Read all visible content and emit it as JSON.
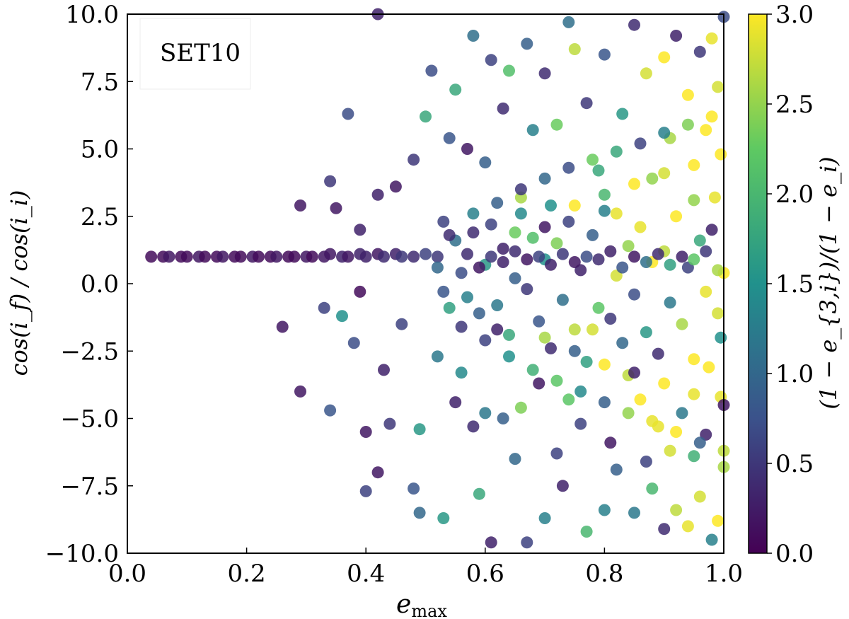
{
  "chart_data": {
    "type": "scatter",
    "title": "",
    "annotation": "SET10",
    "xlabel": {
      "base": "e",
      "sub": "max"
    },
    "ylabel": "cos(i_f) / cos(i_i)",
    "colorbar_label": "(1 − e_{3,i})/(1 − e_i)",
    "xlim": [
      0.0,
      1.0
    ],
    "ylim": [
      -10.0,
      10.0
    ],
    "clim": [
      0.0,
      3.0
    ],
    "xticks": [
      "0.0",
      "0.2",
      "0.4",
      "0.6",
      "0.8",
      "1.0"
    ],
    "yticks": [
      "10.0",
      "7.5",
      "5.0",
      "2.5",
      "0.0",
      "−2.5",
      "−5.0",
      "−7.5",
      "−10.0"
    ],
    "cticks": [
      "3.0",
      "2.5",
      "2.0",
      "1.5",
      "1.0",
      "0.5",
      "0.0"
    ],
    "colormap": [
      "#440154",
      "#3b528b",
      "#21918c",
      "#5ec962",
      "#fde725"
    ],
    "grid": false,
    "points": [
      [
        0.04,
        1.0,
        0.1
      ],
      [
        0.06,
        1.0,
        0.1
      ],
      [
        0.07,
        1.0,
        0.2
      ],
      [
        0.09,
        1.0,
        0.1
      ],
      [
        0.1,
        1.0,
        0.1
      ],
      [
        0.12,
        1.0,
        0.2
      ],
      [
        0.13,
        1.0,
        0.1
      ],
      [
        0.15,
        1.0,
        0.1
      ],
      [
        0.16,
        1.0,
        0.2
      ],
      [
        0.18,
        1.0,
        0.1
      ],
      [
        0.19,
        1.0,
        0.1
      ],
      [
        0.21,
        1.0,
        0.2
      ],
      [
        0.22,
        1.0,
        0.1
      ],
      [
        0.24,
        1.0,
        0.1
      ],
      [
        0.25,
        1.0,
        0.2
      ],
      [
        0.27,
        1.0,
        0.1
      ],
      [
        0.28,
        1.0,
        0.1
      ],
      [
        0.3,
        1.0,
        0.2
      ],
      [
        0.31,
        1.0,
        0.1
      ],
      [
        0.33,
        1.0,
        0.2
      ],
      [
        0.34,
        1.1,
        0.2
      ],
      [
        0.36,
        1.0,
        0.3
      ],
      [
        0.37,
        1.0,
        0.2
      ],
      [
        0.39,
        1.1,
        0.3
      ],
      [
        0.4,
        1.0,
        0.3
      ],
      [
        0.42,
        1.1,
        0.2
      ],
      [
        0.43,
        1.0,
        0.4
      ],
      [
        0.45,
        1.1,
        0.3
      ],
      [
        0.46,
        1.0,
        0.5
      ],
      [
        0.48,
        1.0,
        0.4
      ],
      [
        0.5,
        1.1,
        0.6
      ],
      [
        0.52,
        1.0,
        0.5
      ],
      [
        0.29,
        2.9,
        0.2
      ],
      [
        0.34,
        3.8,
        0.5
      ],
      [
        0.35,
        2.8,
        0.2
      ],
      [
        0.37,
        6.3,
        0.7
      ],
      [
        0.39,
        2.0,
        0.3
      ],
      [
        0.26,
        -1.6,
        0.2
      ],
      [
        0.29,
        -4.0,
        0.2
      ],
      [
        0.33,
        -0.9,
        0.6
      ],
      [
        0.34,
        -4.7,
        0.8
      ],
      [
        0.36,
        -1.2,
        1.5
      ],
      [
        0.38,
        -2.2,
        0.7
      ],
      [
        0.39,
        -0.3,
        0.1
      ],
      [
        0.4,
        -5.5,
        0.2
      ],
      [
        0.4,
        -7.7,
        0.6
      ],
      [
        0.42,
        -7.0,
        0.2
      ],
      [
        0.42,
        3.3,
        0.3
      ],
      [
        0.43,
        -3.2,
        0.3
      ],
      [
        0.44,
        -5.2,
        0.5
      ],
      [
        0.45,
        3.6,
        0.2
      ],
      [
        0.46,
        -1.5,
        0.6
      ],
      [
        0.42,
        10.0,
        0.3
      ],
      [
        0.48,
        -7.6,
        0.8
      ],
      [
        0.48,
        4.6,
        0.5
      ],
      [
        0.49,
        -5.4,
        1.6
      ],
      [
        0.49,
        -8.5,
        1.0
      ],
      [
        0.5,
        6.2,
        1.8
      ],
      [
        0.51,
        7.9,
        0.7
      ],
      [
        0.52,
        -2.7,
        1.2
      ],
      [
        0.53,
        -8.7,
        1.6
      ],
      [
        0.53,
        2.3,
        0.6
      ],
      [
        0.54,
        5.4,
        0.8
      ],
      [
        0.55,
        7.2,
        1.8
      ],
      [
        0.55,
        -4.4,
        0.3
      ],
      [
        0.56,
        -3.3,
        1.4
      ],
      [
        0.57,
        5.0,
        0.2
      ],
      [
        0.58,
        -5.3,
        0.4
      ],
      [
        0.58,
        9.2,
        1.1
      ],
      [
        0.59,
        -7.8,
        1.8
      ],
      [
        0.6,
        -4.8,
        1.2
      ],
      [
        0.6,
        4.5,
        0.9
      ],
      [
        0.61,
        -9.6,
        0.3
      ],
      [
        0.61,
        8.3,
        0.6
      ],
      [
        0.62,
        -1.7,
        0.3
      ],
      [
        0.63,
        6.5,
        0.4
      ],
      [
        0.63,
        -5.0,
        0.9
      ],
      [
        0.64,
        7.9,
        2.1
      ],
      [
        0.65,
        -6.5,
        1.0
      ],
      [
        0.66,
        3.2,
        2.6
      ],
      [
        0.66,
        -4.6,
        2.4
      ],
      [
        0.67,
        8.9,
        0.9
      ],
      [
        0.67,
        -9.6,
        0.6
      ],
      [
        0.68,
        5.7,
        1.3
      ],
      [
        0.69,
        -3.7,
        0.2
      ],
      [
        0.7,
        7.8,
        0.4
      ],
      [
        0.7,
        -8.7,
        1.3
      ],
      [
        0.71,
        2.9,
        1.5
      ],
      [
        0.72,
        -6.3,
        0.6
      ],
      [
        0.72,
        5.9,
        2.3
      ],
      [
        0.73,
        -7.5,
        0.3
      ],
      [
        0.74,
        9.7,
        1.1
      ],
      [
        0.74,
        -4.3,
        2.2
      ],
      [
        0.75,
        8.7,
        2.7
      ],
      [
        0.76,
        -5.2,
        0.6
      ],
      [
        0.77,
        6.7,
        0.5
      ],
      [
        0.77,
        -9.2,
        2.0
      ],
      [
        0.78,
        -1.7,
        2.8
      ],
      [
        0.79,
        4.2,
        1.8
      ],
      [
        0.8,
        -8.4,
        1.3
      ],
      [
        0.8,
        8.5,
        0.8
      ],
      [
        0.81,
        -5.9,
        0.2
      ],
      [
        0.82,
        2.6,
        2.9
      ],
      [
        0.82,
        -6.9,
        0.9
      ],
      [
        0.83,
        6.3,
        1.6
      ],
      [
        0.84,
        -3.4,
        2.7
      ],
      [
        0.85,
        9.6,
        0.4
      ],
      [
        0.85,
        -8.5,
        1.2
      ],
      [
        0.86,
        -4.3,
        3.0
      ],
      [
        0.87,
        7.8,
        2.8
      ],
      [
        0.87,
        -6.6,
        0.6
      ],
      [
        0.88,
        3.9,
        2.5
      ],
      [
        0.88,
        -7.6,
        2.0
      ],
      [
        0.89,
        -5.3,
        2.9
      ],
      [
        0.9,
        8.4,
        3.0
      ],
      [
        0.9,
        -9.1,
        0.4
      ],
      [
        0.91,
        5.4,
        2.6
      ],
      [
        0.91,
        -6.2,
        2.8
      ],
      [
        0.92,
        9.2,
        0.3
      ],
      [
        0.92,
        -8.4,
        2.7
      ],
      [
        0.93,
        -4.8,
        1.2
      ],
      [
        0.94,
        7.0,
        3.0
      ],
      [
        0.94,
        -9.0,
        2.9
      ],
      [
        0.95,
        3.1,
        2.5
      ],
      [
        0.95,
        -6.4,
        1.9
      ],
      [
        0.96,
        8.6,
        0.5
      ],
      [
        0.96,
        -7.9,
        2.8
      ],
      [
        0.97,
        5.7,
        3.0
      ],
      [
        0.97,
        -5.6,
        0.3
      ],
      [
        0.98,
        9.1,
        2.9
      ],
      [
        0.98,
        -9.5,
        1.3
      ],
      [
        0.99,
        7.3,
        2.8
      ],
      [
        0.99,
        -8.8,
        3.0
      ],
      [
        1.0,
        9.9,
        0.7
      ],
      [
        1.0,
        -6.8,
        2.6
      ],
      [
        0.995,
        -4.2,
        2.9
      ],
      [
        0.995,
        4.8,
        3.0
      ],
      [
        0.55,
        1.6,
        1.1
      ],
      [
        0.56,
        0.4,
        0.7
      ],
      [
        0.57,
        -0.5,
        1.3
      ],
      [
        0.58,
        1.9,
        0.4
      ],
      [
        0.59,
        -1.1,
        0.9
      ],
      [
        0.6,
        0.7,
        1.6
      ],
      [
        0.61,
        2.2,
        0.6
      ],
      [
        0.62,
        -0.8,
        1.2
      ],
      [
        0.63,
        1.3,
        0.3
      ],
      [
        0.64,
        -1.9,
        1.8
      ],
      [
        0.65,
        0.2,
        0.9
      ],
      [
        0.66,
        2.6,
        1.4
      ],
      [
        0.67,
        -0.2,
        0.5
      ],
      [
        0.68,
        1.7,
        2.1
      ],
      [
        0.69,
        -1.4,
        0.8
      ],
      [
        0.7,
        0.9,
        1.5
      ],
      [
        0.71,
        -2.4,
        0.4
      ],
      [
        0.72,
        1.5,
        2.4
      ],
      [
        0.73,
        -0.6,
        1.1
      ],
      [
        0.74,
        2.3,
        0.6
      ],
      [
        0.75,
        -1.7,
        2.7
      ],
      [
        0.76,
        0.5,
        0.3
      ],
      [
        0.77,
        -2.9,
        1.7
      ],
      [
        0.78,
        1.8,
        0.9
      ],
      [
        0.79,
        -0.9,
        2.2
      ],
      [
        0.8,
        2.7,
        1.3
      ],
      [
        0.81,
        -1.3,
        0.5
      ],
      [
        0.82,
        0.3,
        2.8
      ],
      [
        0.83,
        -2.2,
        1.0
      ],
      [
        0.84,
        1.4,
        2.5
      ],
      [
        0.85,
        -0.4,
        0.7
      ],
      [
        0.86,
        2.1,
        2.9
      ],
      [
        0.87,
        -1.8,
        1.6
      ],
      [
        0.88,
        0.8,
        3.0
      ],
      [
        0.89,
        -2.6,
        0.4
      ],
      [
        0.9,
        1.2,
        2.7
      ],
      [
        0.91,
        -0.7,
        1.2
      ],
      [
        0.92,
        2.5,
        3.0
      ],
      [
        0.93,
        -1.5,
        2.6
      ],
      [
        0.94,
        0.6,
        0.6
      ],
      [
        0.95,
        -2.8,
        3.0
      ],
      [
        0.96,
        1.6,
        1.8
      ],
      [
        0.97,
        -0.3,
        2.9
      ],
      [
        0.98,
        2.0,
        0.3
      ],
      [
        0.99,
        -1.1,
        2.8
      ],
      [
        1.0,
        0.4,
        3.0
      ],
      [
        0.995,
        -2.0,
        1.5
      ],
      [
        0.985,
        3.2,
        2.9
      ],
      [
        0.975,
        -3.1,
        3.0
      ],
      [
        0.57,
        1.1,
        0.4
      ],
      [
        0.59,
        0.6,
        0.2
      ],
      [
        0.61,
        1.0,
        0.5
      ],
      [
        0.63,
        0.8,
        0.3
      ],
      [
        0.65,
        1.2,
        0.4
      ],
      [
        0.67,
        0.9,
        0.2
      ],
      [
        0.69,
        1.0,
        0.6
      ],
      [
        0.71,
        0.7,
        0.3
      ],
      [
        0.73,
        1.1,
        0.5
      ],
      [
        0.75,
        0.8,
        0.2
      ],
      [
        0.77,
        1.0,
        0.7
      ],
      [
        0.79,
        0.9,
        0.4
      ],
      [
        0.81,
        1.2,
        0.3
      ],
      [
        0.83,
        0.6,
        0.8
      ],
      [
        0.85,
        1.0,
        0.2
      ],
      [
        0.87,
        0.8,
        1.1
      ],
      [
        0.89,
        1.1,
        0.4
      ],
      [
        0.91,
        0.7,
        1.7
      ],
      [
        0.93,
        1.0,
        0.3
      ],
      [
        0.95,
        0.9,
        2.2
      ],
      [
        0.97,
        1.2,
        0.5
      ],
      [
        0.99,
        0.5,
        2.6
      ],
      [
        0.52,
        0.6,
        1.0
      ],
      [
        0.53,
        -0.3,
        0.8
      ],
      [
        0.54,
        1.8,
        0.4
      ],
      [
        0.54,
        -0.9,
        1.7
      ],
      [
        0.56,
        -1.6,
        0.5
      ],
      [
        0.58,
        2.6,
        1.3
      ],
      [
        0.6,
        -2.1,
        0.6
      ],
      [
        0.62,
        3.0,
        0.9
      ],
      [
        0.64,
        -2.7,
        1.5
      ],
      [
        0.66,
        3.5,
        0.5
      ],
      [
        0.68,
        -3.2,
        1.9
      ],
      [
        0.7,
        3.9,
        1.0
      ],
      [
        0.72,
        -3.6,
        2.2
      ],
      [
        0.74,
        4.3,
        0.7
      ],
      [
        0.76,
        -4.0,
        1.4
      ],
      [
        0.78,
        4.6,
        2.3
      ],
      [
        0.8,
        -4.4,
        0.9
      ],
      [
        0.82,
        4.9,
        1.8
      ],
      [
        0.84,
        -4.8,
        2.5
      ],
      [
        0.86,
        5.2,
        0.6
      ],
      [
        0.88,
        -5.1,
        2.9
      ],
      [
        0.9,
        5.6,
        1.3
      ],
      [
        0.92,
        -5.5,
        3.0
      ],
      [
        0.94,
        5.9,
        2.4
      ],
      [
        0.96,
        -5.9,
        0.9
      ],
      [
        0.98,
        6.2,
        3.0
      ],
      [
        1.0,
        -6.2,
        2.7
      ],
      [
        0.65,
        1.9,
        2.3
      ],
      [
        0.7,
        2.1,
        0.2
      ],
      [
        0.75,
        2.9,
        3.0
      ],
      [
        0.8,
        3.3,
        2.0
      ],
      [
        0.85,
        3.7,
        3.0
      ],
      [
        0.9,
        4.1,
        2.8
      ],
      [
        0.95,
        4.4,
        3.0
      ],
      [
        0.7,
        -2.0,
        2.6
      ],
      [
        0.75,
        -2.5,
        0.9
      ],
      [
        0.8,
        -3.0,
        3.0
      ],
      [
        0.85,
        -3.3,
        0.3
      ],
      [
        0.9,
        -3.7,
        3.0
      ],
      [
        0.95,
        -4.1,
        2.9
      ],
      [
        1.0,
        -4.5,
        0.2
      ]
    ]
  }
}
